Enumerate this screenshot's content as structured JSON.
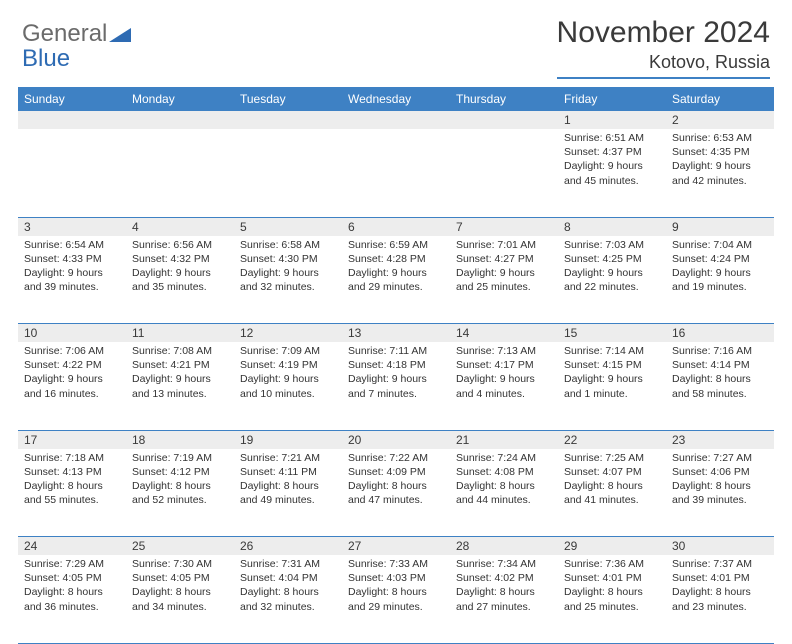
{
  "brand": {
    "part1": "General",
    "part2": "Blue"
  },
  "title": "November 2024",
  "location": "Kotovo, Russia",
  "colors": {
    "header_bg": "#3e81c4",
    "header_text": "#ffffff",
    "daynum_bg": "#ededed",
    "grid_line": "#3e81c4",
    "text": "#333333",
    "brand_gray": "#6b6b6b",
    "brand_blue": "#2e6bb3"
  },
  "weekdays": [
    "Sunday",
    "Monday",
    "Tuesday",
    "Wednesday",
    "Thursday",
    "Friday",
    "Saturday"
  ],
  "weeks": [
    [
      null,
      null,
      null,
      null,
      null,
      {
        "n": "1",
        "sr": "Sunrise: 6:51 AM",
        "ss": "Sunset: 4:37 PM",
        "dl": "Daylight: 9 hours and 45 minutes."
      },
      {
        "n": "2",
        "sr": "Sunrise: 6:53 AM",
        "ss": "Sunset: 4:35 PM",
        "dl": "Daylight: 9 hours and 42 minutes."
      }
    ],
    [
      {
        "n": "3",
        "sr": "Sunrise: 6:54 AM",
        "ss": "Sunset: 4:33 PM",
        "dl": "Daylight: 9 hours and 39 minutes."
      },
      {
        "n": "4",
        "sr": "Sunrise: 6:56 AM",
        "ss": "Sunset: 4:32 PM",
        "dl": "Daylight: 9 hours and 35 minutes."
      },
      {
        "n": "5",
        "sr": "Sunrise: 6:58 AM",
        "ss": "Sunset: 4:30 PM",
        "dl": "Daylight: 9 hours and 32 minutes."
      },
      {
        "n": "6",
        "sr": "Sunrise: 6:59 AM",
        "ss": "Sunset: 4:28 PM",
        "dl": "Daylight: 9 hours and 29 minutes."
      },
      {
        "n": "7",
        "sr": "Sunrise: 7:01 AM",
        "ss": "Sunset: 4:27 PM",
        "dl": "Daylight: 9 hours and 25 minutes."
      },
      {
        "n": "8",
        "sr": "Sunrise: 7:03 AM",
        "ss": "Sunset: 4:25 PM",
        "dl": "Daylight: 9 hours and 22 minutes."
      },
      {
        "n": "9",
        "sr": "Sunrise: 7:04 AM",
        "ss": "Sunset: 4:24 PM",
        "dl": "Daylight: 9 hours and 19 minutes."
      }
    ],
    [
      {
        "n": "10",
        "sr": "Sunrise: 7:06 AM",
        "ss": "Sunset: 4:22 PM",
        "dl": "Daylight: 9 hours and 16 minutes."
      },
      {
        "n": "11",
        "sr": "Sunrise: 7:08 AM",
        "ss": "Sunset: 4:21 PM",
        "dl": "Daylight: 9 hours and 13 minutes."
      },
      {
        "n": "12",
        "sr": "Sunrise: 7:09 AM",
        "ss": "Sunset: 4:19 PM",
        "dl": "Daylight: 9 hours and 10 minutes."
      },
      {
        "n": "13",
        "sr": "Sunrise: 7:11 AM",
        "ss": "Sunset: 4:18 PM",
        "dl": "Daylight: 9 hours and 7 minutes."
      },
      {
        "n": "14",
        "sr": "Sunrise: 7:13 AM",
        "ss": "Sunset: 4:17 PM",
        "dl": "Daylight: 9 hours and 4 minutes."
      },
      {
        "n": "15",
        "sr": "Sunrise: 7:14 AM",
        "ss": "Sunset: 4:15 PM",
        "dl": "Daylight: 9 hours and 1 minute."
      },
      {
        "n": "16",
        "sr": "Sunrise: 7:16 AM",
        "ss": "Sunset: 4:14 PM",
        "dl": "Daylight: 8 hours and 58 minutes."
      }
    ],
    [
      {
        "n": "17",
        "sr": "Sunrise: 7:18 AM",
        "ss": "Sunset: 4:13 PM",
        "dl": "Daylight: 8 hours and 55 minutes."
      },
      {
        "n": "18",
        "sr": "Sunrise: 7:19 AM",
        "ss": "Sunset: 4:12 PM",
        "dl": "Daylight: 8 hours and 52 minutes."
      },
      {
        "n": "19",
        "sr": "Sunrise: 7:21 AM",
        "ss": "Sunset: 4:11 PM",
        "dl": "Daylight: 8 hours and 49 minutes."
      },
      {
        "n": "20",
        "sr": "Sunrise: 7:22 AM",
        "ss": "Sunset: 4:09 PM",
        "dl": "Daylight: 8 hours and 47 minutes."
      },
      {
        "n": "21",
        "sr": "Sunrise: 7:24 AM",
        "ss": "Sunset: 4:08 PM",
        "dl": "Daylight: 8 hours and 44 minutes."
      },
      {
        "n": "22",
        "sr": "Sunrise: 7:25 AM",
        "ss": "Sunset: 4:07 PM",
        "dl": "Daylight: 8 hours and 41 minutes."
      },
      {
        "n": "23",
        "sr": "Sunrise: 7:27 AM",
        "ss": "Sunset: 4:06 PM",
        "dl": "Daylight: 8 hours and 39 minutes."
      }
    ],
    [
      {
        "n": "24",
        "sr": "Sunrise: 7:29 AM",
        "ss": "Sunset: 4:05 PM",
        "dl": "Daylight: 8 hours and 36 minutes."
      },
      {
        "n": "25",
        "sr": "Sunrise: 7:30 AM",
        "ss": "Sunset: 4:05 PM",
        "dl": "Daylight: 8 hours and 34 minutes."
      },
      {
        "n": "26",
        "sr": "Sunrise: 7:31 AM",
        "ss": "Sunset: 4:04 PM",
        "dl": "Daylight: 8 hours and 32 minutes."
      },
      {
        "n": "27",
        "sr": "Sunrise: 7:33 AM",
        "ss": "Sunset: 4:03 PM",
        "dl": "Daylight: 8 hours and 29 minutes."
      },
      {
        "n": "28",
        "sr": "Sunrise: 7:34 AM",
        "ss": "Sunset: 4:02 PM",
        "dl": "Daylight: 8 hours and 27 minutes."
      },
      {
        "n": "29",
        "sr": "Sunrise: 7:36 AM",
        "ss": "Sunset: 4:01 PM",
        "dl": "Daylight: 8 hours and 25 minutes."
      },
      {
        "n": "30",
        "sr": "Sunrise: 7:37 AM",
        "ss": "Sunset: 4:01 PM",
        "dl": "Daylight: 8 hours and 23 minutes."
      }
    ]
  ]
}
